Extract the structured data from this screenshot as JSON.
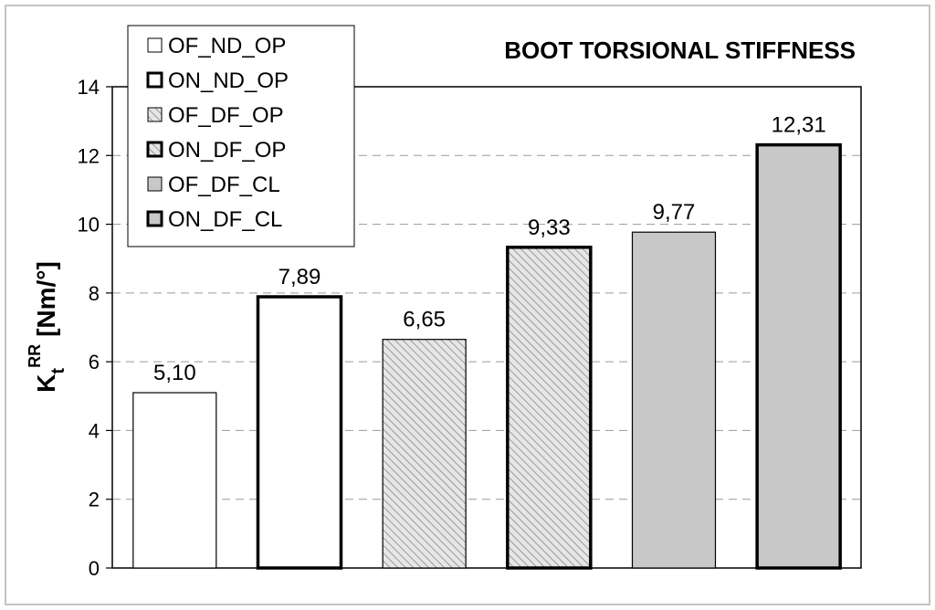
{
  "chart_data": {
    "type": "bar",
    "title": "BOOT TORSIONAL STIFFNESS",
    "ylabel": {
      "base": "K",
      "sub": "t",
      "sup": "RR",
      "unit": "[Nm/°]"
    },
    "ylim": [
      0,
      14
    ],
    "yticks": [
      0,
      2,
      4,
      6,
      8,
      10,
      12,
      14
    ],
    "grid": true,
    "legend_position": "top-left",
    "categories": [
      "OF_ND_OP",
      "ON_ND_OP",
      "OF_DF_OP",
      "ON_DF_OP",
      "OF_DF_CL",
      "ON_DF_CL"
    ],
    "values": [
      5.1,
      7.89,
      6.65,
      9.33,
      9.77,
      12.31
    ],
    "value_labels": [
      "5,10",
      "7,89",
      "6,65",
      "9,33",
      "9,77",
      "12,31"
    ],
    "series_styles": [
      {
        "fill": "white",
        "border": "thin"
      },
      {
        "fill": "white",
        "border": "thick"
      },
      {
        "fill": "hatch",
        "border": "thin"
      },
      {
        "fill": "hatch",
        "border": "thick"
      },
      {
        "fill": "grey",
        "border": "thin"
      },
      {
        "fill": "grey",
        "border": "thick"
      }
    ],
    "colors": {
      "grey": "#c8c8c8",
      "hatch": "#9a9a9a",
      "border": "#000000",
      "grid": "#9a9a9a"
    }
  }
}
